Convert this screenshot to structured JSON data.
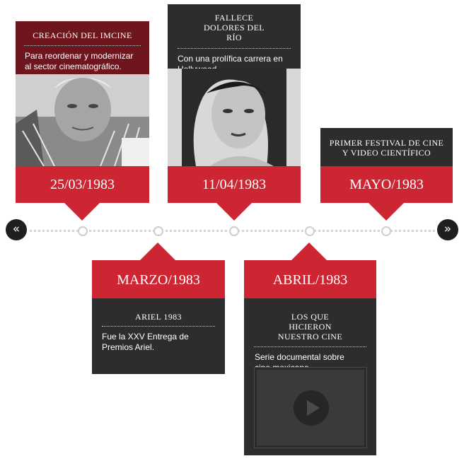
{
  "nav": {
    "prev": "«",
    "next": "»"
  },
  "events": [
    {
      "title": "CREACIÓN DEL IMCINE",
      "desc": "Para reordenar y modernizar al sector cinematográfico.",
      "date": "25/03/1983"
    },
    {
      "title": "FALLECE DOLORES DEL RÍO",
      "desc": "Con una prolífica carrera en Hollywood.",
      "date": "11/04/1983"
    },
    {
      "title": "PRIMER FESTIVAL DE CINE Y VIDEO CIENTÍFICO",
      "date": "MAYO/1983"
    },
    {
      "title": "ARIEL 1983",
      "desc": "Fue la XXV Entrega de Premios Ariel.",
      "date": "MARZO/1983"
    },
    {
      "title": "LOS QUE HICIERON NUESTRO CINE",
      "desc": "Serie documental sobre cine mexicano.",
      "date": "ABRIL/1983"
    }
  ],
  "icons": {
    "play": "play-icon"
  },
  "colors": {
    "accent": "#cd2632",
    "dark": "#2d2d2d",
    "maroon": "#6e151d"
  }
}
